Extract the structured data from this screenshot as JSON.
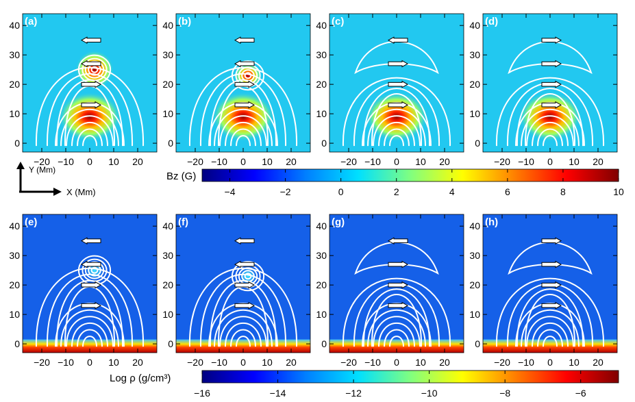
{
  "chart_data": [
    {
      "type": "heatmap",
      "quantity": "Bz",
      "colorbar_label": "Bz (G)",
      "colorbar_range": [
        -5,
        10
      ],
      "colorbar_ticks": [
        "−4",
        "−2",
        "0",
        "2",
        "4",
        "6",
        "8",
        "10"
      ],
      "colorbar_tick_values": [
        -4,
        -2,
        0,
        2,
        4,
        6,
        8,
        10
      ],
      "panels": [
        {
          "label": "(a)",
          "center_y": 25,
          "arrows": [
            {
              "y": 35,
              "dir": "left"
            },
            {
              "y": 27,
              "dir": "left"
            },
            {
              "y": 20,
              "dir": "right"
            },
            {
              "y": 13,
              "dir": "right"
            }
          ]
        },
        {
          "label": "(b)",
          "center_y": 23,
          "arrows": [
            {
              "y": 35,
              "dir": "left"
            },
            {
              "y": 27,
              "dir": "left"
            },
            {
              "y": 20,
              "dir": "right"
            },
            {
              "y": 13,
              "dir": "right"
            }
          ]
        },
        {
          "label": "(c)",
          "center_y": 10,
          "arrows": [
            {
              "y": 35,
              "dir": "left"
            },
            {
              "y": 27,
              "dir": "right"
            },
            {
              "y": 20,
              "dir": "right"
            },
            {
              "y": 13,
              "dir": "right"
            }
          ]
        },
        {
          "label": "(d)",
          "center_y": 8,
          "arrows": [
            {
              "y": 35,
              "dir": "right"
            },
            {
              "y": 27,
              "dir": "right"
            },
            {
              "y": 20,
              "dir": "right"
            },
            {
              "y": 13,
              "dir": "right"
            }
          ]
        }
      ]
    },
    {
      "type": "heatmap",
      "quantity": "density",
      "colorbar_label": "Log ρ (g/cm³)",
      "colorbar_range": [
        -16,
        -5
      ],
      "colorbar_ticks": [
        "−16",
        "−14",
        "−12",
        "−10",
        "−8",
        "−6"
      ],
      "colorbar_tick_values": [
        -16,
        -14,
        -12,
        -10,
        -8,
        -6
      ],
      "panels": [
        {
          "label": "(e)",
          "center_y": 25,
          "arrows": [
            {
              "y": 35,
              "dir": "left"
            },
            {
              "y": 27,
              "dir": "left"
            },
            {
              "y": 20,
              "dir": "right"
            },
            {
              "y": 13,
              "dir": "right"
            }
          ]
        },
        {
          "label": "(f)",
          "center_y": 23,
          "arrows": [
            {
              "y": 35,
              "dir": "left"
            },
            {
              "y": 27,
              "dir": "left"
            },
            {
              "y": 20,
              "dir": "right"
            },
            {
              "y": 13,
              "dir": "right"
            }
          ]
        },
        {
          "label": "(g)",
          "center_y": 10,
          "arrows": [
            {
              "y": 35,
              "dir": "left"
            },
            {
              "y": 27,
              "dir": "right"
            },
            {
              "y": 20,
              "dir": "right"
            },
            {
              "y": 13,
              "dir": "right"
            }
          ]
        },
        {
          "label": "(h)",
          "center_y": 8,
          "arrows": [
            {
              "y": 35,
              "dir": "right"
            },
            {
              "y": 27,
              "dir": "right"
            },
            {
              "y": 20,
              "dir": "right"
            },
            {
              "y": 13,
              "dir": "right"
            }
          ]
        }
      ]
    }
  ],
  "axes": {
    "xlim": [
      -28,
      28
    ],
    "ylim": [
      -3,
      44
    ],
    "xticks": [
      -20,
      -10,
      0,
      10,
      20
    ],
    "xtick_labels": [
      "−20",
      "−10",
      "0",
      "10",
      "20"
    ],
    "yticks": [
      0,
      10,
      20,
      30,
      40
    ],
    "ytick_labels": [
      "0",
      "10",
      "20",
      "30",
      "40"
    ]
  },
  "orientation_key": {
    "y_label": "Y (Mm)",
    "x_label": "X (Mm)"
  },
  "colors": {
    "background_bz": "#22c8f0",
    "background_rho": "#1560e8",
    "field_lines": "#ffffff",
    "arrow_fill": "#ffffff",
    "arrow_outline": "#000000",
    "colormap": [
      "#000080",
      "#0000ff",
      "#0080ff",
      "#00e0ff",
      "#80ff80",
      "#ffff00",
      "#ff8000",
      "#ff0000",
      "#800000"
    ]
  }
}
